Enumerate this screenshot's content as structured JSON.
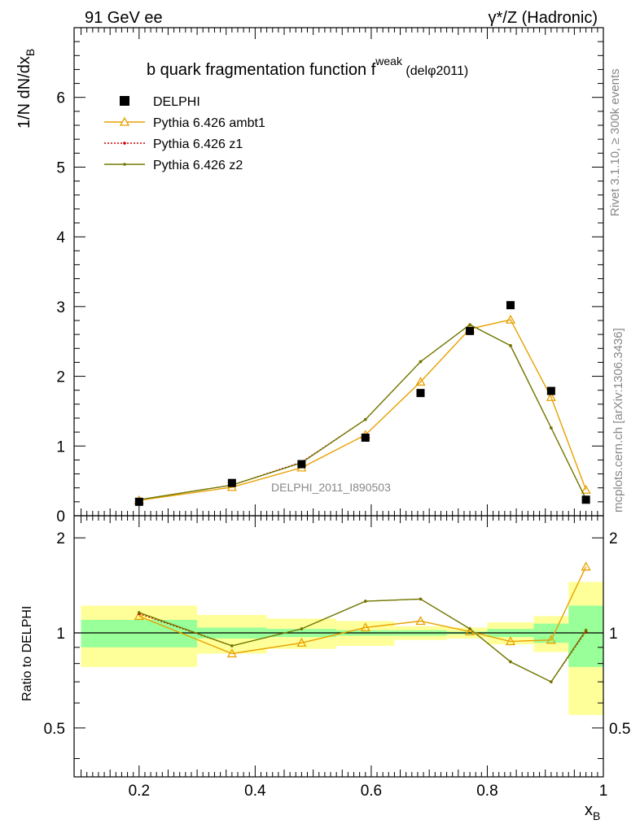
{
  "header": {
    "left": "91 GeV ee",
    "right": "γ*/Z (Hadronic)"
  },
  "side_labels": {
    "rivet": "Rivet 3.1.10, ≥ 300k events",
    "mcplots": "mcplots.cern.ch [arXiv:1306.3436]"
  },
  "chart_data": {
    "type": "line",
    "title_main": "b quark fragmentation function f",
    "title_sup": "weak",
    "title_suffix": " (delφ2011)",
    "watermark": "DELPHI_2011_I890503",
    "xlabel": "x",
    "xlabel_sub": "B",
    "ylabel": "1/N dN/dx",
    "ylabel_sub": "B",
    "ratio_ylabel": "Ratio to DELPHI",
    "xlim": [
      0.088,
      1.0
    ],
    "ylim": [
      0,
      7.0
    ],
    "ratio_ylim": [
      0.35,
      2.35
    ],
    "x_ticks": [
      "0.2",
      "0.4",
      "0.6",
      "0.8",
      "1"
    ],
    "y_ticks": [
      "0",
      "1",
      "2",
      "3",
      "4",
      "5",
      "6"
    ],
    "ratio_ticks": [
      "0.5",
      "1",
      "2"
    ],
    "legend": [
      {
        "name": "DELPHI",
        "style": "square"
      },
      {
        "name": "Pythia 6.426 ambt1",
        "style": "triangle"
      },
      {
        "name": "Pythia 6.426 z1",
        "style": "dotted"
      },
      {
        "name": "Pythia 6.426 z2",
        "style": "solid"
      }
    ],
    "x": [
      0.2,
      0.36,
      0.48,
      0.59,
      0.685,
      0.77,
      0.84,
      0.91,
      0.97
    ],
    "bin_edges": [
      0.1,
      0.3,
      0.42,
      0.54,
      0.64,
      0.73,
      0.8,
      0.88,
      0.94,
      1.0
    ],
    "data": {
      "name": "DELPHI",
      "values": [
        0.2,
        0.47,
        0.74,
        1.12,
        1.76,
        2.65,
        3.02,
        1.79,
        0.23
      ]
    },
    "series": [
      {
        "name": "Pythia 6.426 ambt1",
        "color": "#e8a000",
        "values": [
          0.22,
          0.41,
          0.69,
          1.16,
          1.92,
          2.68,
          2.81,
          1.7,
          0.37
        ],
        "ratio": [
          1.13,
          0.86,
          0.93,
          1.04,
          1.09,
          1.01,
          0.94,
          0.95,
          1.62
        ]
      },
      {
        "name": "Pythia 6.426 z1",
        "color": "#cc0000",
        "values": [
          0.23,
          0.44,
          0.77,
          1.38,
          2.21,
          2.74,
          2.44,
          1.26,
          0.24
        ],
        "ratio": [
          1.15,
          0.91,
          1.03,
          1.26,
          1.28,
          1.03,
          0.81,
          0.7,
          1.01
        ]
      },
      {
        "name": "Pythia 6.426 z2",
        "color": "#707a00",
        "values": [
          0.23,
          0.44,
          0.76,
          1.38,
          2.21,
          2.74,
          2.44,
          1.26,
          0.24
        ],
        "ratio": [
          1.16,
          0.91,
          1.03,
          1.26,
          1.28,
          1.03,
          0.81,
          0.7,
          1.02
        ]
      }
    ],
    "bands": {
      "inner": [
        [
          0.9,
          1.1
        ],
        [
          0.96,
          1.04
        ],
        [
          0.97,
          1.03
        ],
        [
          0.98,
          1.02
        ],
        [
          0.98,
          1.02
        ],
        [
          0.99,
          1.01
        ],
        [
          0.97,
          1.03
        ],
        [
          0.93,
          1.07
        ],
        [
          0.78,
          1.22
        ]
      ],
      "outer": [
        [
          0.78,
          1.22
        ],
        [
          0.86,
          1.14
        ],
        [
          0.89,
          1.11
        ],
        [
          0.91,
          1.09
        ],
        [
          0.95,
          1.05
        ],
        [
          0.96,
          1.04
        ],
        [
          0.92,
          1.08
        ],
        [
          0.87,
          1.13
        ],
        [
          0.55,
          1.45
        ]
      ]
    }
  }
}
